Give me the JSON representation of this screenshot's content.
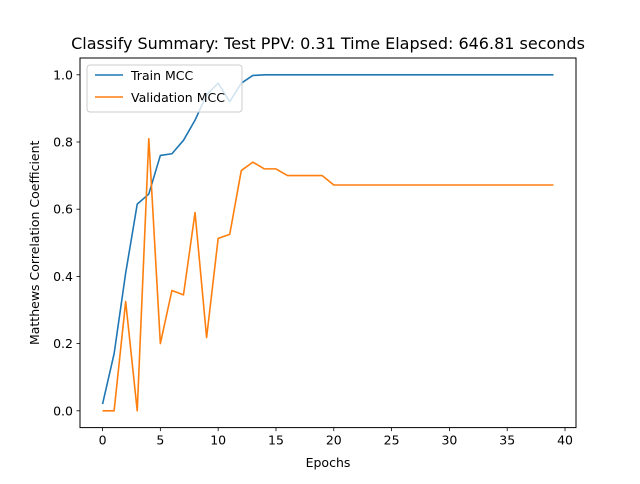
{
  "chart_data": {
    "type": "line",
    "title": "Classify Summary: Test PPV: 0.31 Time Elapsed: 646.81 seconds",
    "xlabel": "Epochs",
    "ylabel": "Matthews Correlation Coefficient",
    "xlim": [
      -1.95,
      40.95
    ],
    "ylim": [
      -0.05,
      1.05
    ],
    "xticks": [
      0,
      5,
      10,
      15,
      20,
      25,
      30,
      35,
      40
    ],
    "yticks": [
      0.0,
      0.2,
      0.4,
      0.6,
      0.8,
      1.0
    ],
    "ytick_labels": [
      "0.0",
      "0.2",
      "0.4",
      "0.6",
      "0.8",
      "1.0"
    ],
    "grid": false,
    "legend_position": "upper-left",
    "x": [
      0,
      1,
      2,
      3,
      4,
      5,
      6,
      7,
      8,
      9,
      10,
      11,
      12,
      13,
      14,
      15,
      16,
      17,
      18,
      19,
      20,
      21,
      22,
      23,
      24,
      25,
      26,
      27,
      28,
      29,
      30,
      31,
      32,
      33,
      34,
      35,
      36,
      37,
      38,
      39
    ],
    "series": [
      {
        "name": "Train MCC",
        "color": "#1f77b4",
        "values": [
          0.02,
          0.17,
          0.41,
          0.615,
          0.645,
          0.76,
          0.765,
          0.805,
          0.865,
          0.94,
          0.975,
          0.92,
          0.975,
          0.998,
          1.0,
          1.0,
          1.0,
          1.0,
          1.0,
          1.0,
          1.0,
          1.0,
          1.0,
          1.0,
          1.0,
          1.0,
          1.0,
          1.0,
          1.0,
          1.0,
          1.0,
          1.0,
          1.0,
          1.0,
          1.0,
          1.0,
          1.0,
          1.0,
          1.0,
          1.0
        ]
      },
      {
        "name": "Validation MCC",
        "color": "#ff7f0e",
        "values": [
          0.0,
          0.0,
          0.325,
          0.0,
          0.81,
          0.2,
          0.358,
          0.345,
          0.59,
          0.218,
          0.513,
          0.525,
          0.715,
          0.74,
          0.72,
          0.72,
          0.7,
          0.7,
          0.7,
          0.7,
          0.672,
          0.672,
          0.672,
          0.672,
          0.672,
          0.672,
          0.672,
          0.672,
          0.672,
          0.672,
          0.672,
          0.672,
          0.672,
          0.672,
          0.672,
          0.672,
          0.672,
          0.672,
          0.672,
          0.672
        ]
      }
    ]
  }
}
